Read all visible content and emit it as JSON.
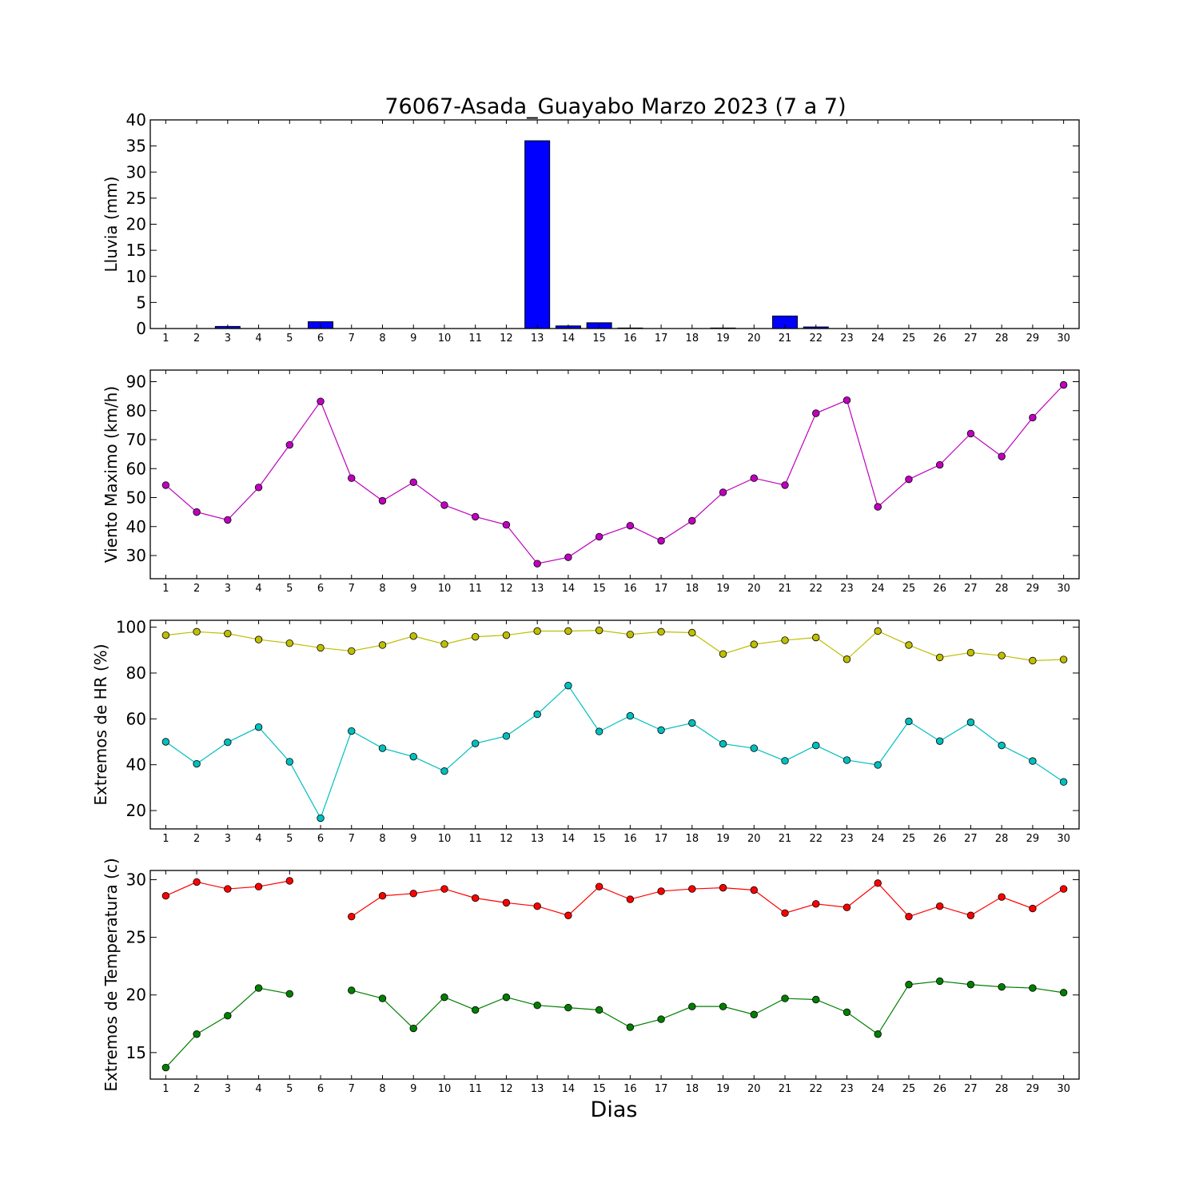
{
  "figure": {
    "title": "76067-Asada_Guayabo Marzo 2023  (7 a 7)",
    "xlabel": "Dias"
  },
  "chart_data": [
    {
      "type": "bar",
      "ylabel": "Lluvia (mm)",
      "categories": [
        "1",
        "2",
        "3",
        "4",
        "5",
        "6",
        "7",
        "8",
        "9",
        "10",
        "11",
        "12",
        "13",
        "14",
        "15",
        "16",
        "17",
        "18",
        "19",
        "20",
        "21",
        "22",
        "23",
        "24",
        "25",
        "26",
        "27",
        "28",
        "29",
        "30"
      ],
      "values": [
        0,
        0,
        0.4,
        0,
        0,
        1.3,
        0,
        0,
        0,
        0,
        0,
        0,
        36,
        0.5,
        1.1,
        0.1,
        0,
        0,
        0.1,
        0,
        2.4,
        0.3,
        0,
        0,
        0,
        0,
        0,
        0,
        0,
        0
      ],
      "ylim": [
        0,
        40
      ],
      "yticks": [
        0,
        5,
        10,
        15,
        20,
        25,
        30,
        35,
        40
      ],
      "colors": {
        "bar": "#0000ff"
      },
      "grid": false
    },
    {
      "type": "line",
      "ylabel": "Viento Maximo (km/h)",
      "x": [
        1,
        2,
        3,
        4,
        5,
        6,
        7,
        8,
        9,
        10,
        11,
        12,
        13,
        14,
        15,
        16,
        17,
        18,
        19,
        20,
        21,
        22,
        23,
        24,
        25,
        26,
        27,
        28,
        29,
        30
      ],
      "series": [
        {
          "values": [
            54.3,
            45.0,
            42.3,
            53.5,
            68.2,
            83.2,
            56.7,
            48.9,
            55.3,
            47.4,
            43.4,
            40.6,
            27.2,
            29.4,
            36.5,
            40.3,
            35.1,
            42.0,
            51.8,
            56.7,
            54.3,
            79.1,
            83.6,
            46.8,
            56.3,
            61.3,
            72.1,
            64.2,
            77.6,
            88.9
          ],
          "color": "#bf00bf"
        }
      ],
      "ylim": [
        22,
        94
      ],
      "yticks": [
        30,
        40,
        50,
        60,
        70,
        80,
        90
      ],
      "grid": false
    },
    {
      "type": "line",
      "ylabel": "Extremos de HR (%)",
      "x": [
        1,
        2,
        3,
        4,
        5,
        6,
        7,
        8,
        9,
        10,
        11,
        12,
        13,
        14,
        15,
        16,
        17,
        18,
        19,
        20,
        21,
        22,
        23,
        24,
        25,
        26,
        27,
        28,
        29,
        30
      ],
      "series": [
        {
          "values": [
            96.5,
            98.0,
            97.2,
            94.6,
            93.0,
            91.0,
            89.6,
            92.2,
            96.1,
            92.6,
            95.8,
            96.5,
            98.3,
            98.3,
            98.6,
            96.8,
            98.0,
            97.6,
            88.3,
            92.5,
            94.3,
            95.5,
            86.0,
            98.3,
            92.2,
            86.8,
            88.9,
            87.6,
            85.4,
            85.9
          ],
          "color": "#bfbf00"
        },
        {
          "values": [
            50.0,
            40.4,
            49.8,
            56.4,
            41.3,
            16.7,
            54.7,
            47.2,
            43.5,
            37.2,
            49.3,
            52.5,
            62.0,
            74.5,
            54.5,
            61.3,
            55.1,
            58.2,
            49.1,
            47.2,
            41.7,
            48.4,
            42.0,
            39.9,
            58.9,
            50.3,
            58.5,
            48.4,
            41.6,
            32.5
          ],
          "color": "#00bfbf"
        }
      ],
      "ylim": [
        12,
        103
      ],
      "yticks": [
        20,
        40,
        60,
        80,
        100
      ],
      "grid": false
    },
    {
      "type": "line",
      "ylabel": "Extremos de Temperatura (c)",
      "x": [
        1,
        2,
        3,
        4,
        5,
        6,
        7,
        8,
        9,
        10,
        11,
        12,
        13,
        14,
        15,
        16,
        17,
        18,
        19,
        20,
        21,
        22,
        23,
        24,
        25,
        26,
        27,
        28,
        29,
        30
      ],
      "series": [
        {
          "values": [
            28.6,
            29.8,
            29.2,
            29.4,
            29.9,
            null,
            26.8,
            28.6,
            28.8,
            29.2,
            28.4,
            28.0,
            27.7,
            26.9,
            29.4,
            28.3,
            29.0,
            29.2,
            29.3,
            29.1,
            27.1,
            27.9,
            27.6,
            29.7,
            26.8,
            27.7,
            26.9,
            28.5,
            27.5,
            29.2
          ],
          "color": "#ff0000"
        },
        {
          "values": [
            13.7,
            16.6,
            18.2,
            20.6,
            20.1,
            null,
            20.4,
            19.7,
            17.1,
            19.8,
            18.7,
            19.8,
            19.1,
            18.9,
            18.7,
            17.2,
            17.9,
            19.0,
            19.0,
            18.3,
            19.7,
            19.6,
            18.5,
            16.6,
            20.9,
            21.2,
            20.9,
            20.7,
            20.6,
            20.2
          ],
          "color": "#007f00"
        }
      ],
      "ylim": [
        12.7,
        30.8
      ],
      "yticks": [
        15,
        20,
        25,
        30
      ],
      "grid": false
    }
  ]
}
